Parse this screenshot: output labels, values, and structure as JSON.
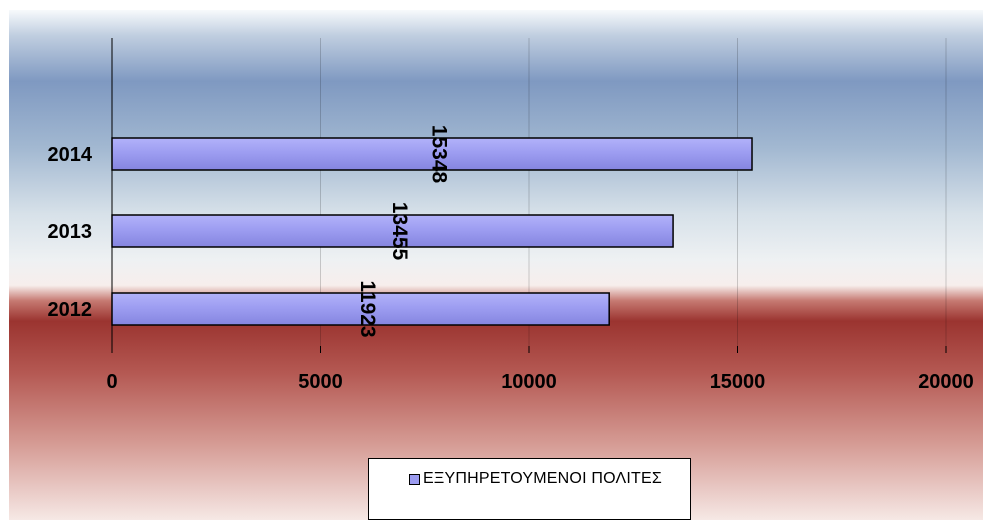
{
  "chart_data": {
    "type": "bar",
    "orientation": "horizontal",
    "categories": [
      "2012",
      "2013",
      "2014"
    ],
    "series": [
      {
        "name": "ΕΞΥΠΗΡΕΤΟΥΜΕΝΟΙ ΠΟΛΙΤΕΣ",
        "values": [
          11923,
          13455,
          15348
        ]
      }
    ],
    "data_labels": [
      "11923",
      "13455",
      "15348"
    ],
    "x_ticks": [
      "0",
      "5000",
      "10000",
      "15000",
      "20000"
    ],
    "xlim": [
      0,
      20000
    ],
    "title": "",
    "xlabel": "",
    "ylabel": "",
    "grid": true,
    "legend_position": "bottom",
    "bar_color": "#9b9bf0",
    "background": "blue-to-red gradient"
  },
  "legend": {
    "label": "ΕΞΥΠΗΡΕΤΟΥΜΕΝΟΙ ΠΟΛΙΤΕΣ"
  }
}
